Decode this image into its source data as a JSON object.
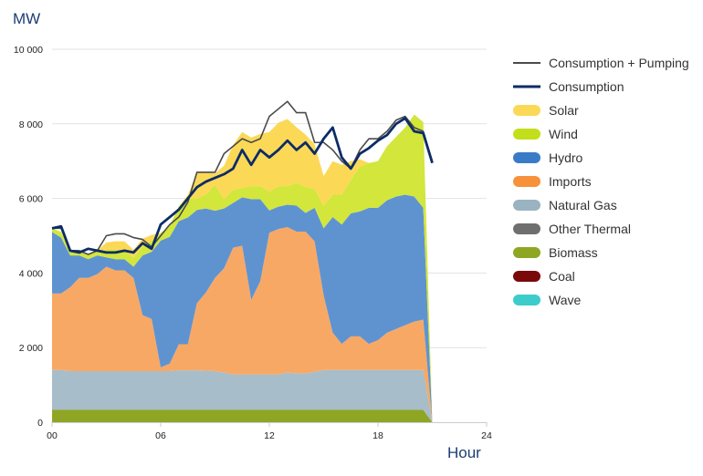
{
  "chart_data": {
    "type": "area",
    "unit": "MW",
    "xlabel": "Hour",
    "ylabel": "MW",
    "xlim": [
      0,
      24
    ],
    "ylim": [
      0,
      10000
    ],
    "xticks": [
      0,
      6,
      12,
      18,
      24
    ],
    "xtick_labels": [
      "00",
      "06",
      "12",
      "18",
      "24"
    ],
    "yticks": [
      0,
      2000,
      4000,
      6000,
      8000,
      10000
    ],
    "ytick_labels": [
      "0",
      "2 000",
      "4 000",
      "6 000",
      "8 000",
      "10 000"
    ],
    "grid": "horizontal",
    "legend_position": "right",
    "x": [
      0,
      0.5,
      1,
      1.5,
      2,
      2.5,
      3,
      3.5,
      4,
      4.5,
      5,
      5.5,
      6,
      6.5,
      7,
      7.5,
      8,
      8.5,
      9,
      9.5,
      10,
      10.5,
      11,
      11.5,
      12,
      12.5,
      13,
      13.5,
      14,
      14.5,
      15,
      15.5,
      16,
      16.5,
      17,
      17.5,
      18,
      18.5,
      19,
      19.5,
      20,
      20.5,
      21
    ],
    "stacked_series": [
      {
        "name": "Biomass",
        "color": "#8fa624",
        "values": [
          330,
          330,
          330,
          330,
          330,
          330,
          330,
          330,
          330,
          330,
          330,
          330,
          330,
          330,
          330,
          330,
          330,
          330,
          330,
          330,
          330,
          330,
          330,
          330,
          330,
          330,
          330,
          330,
          330,
          330,
          330,
          330,
          330,
          330,
          330,
          330,
          330,
          330,
          330,
          330,
          330,
          330,
          0
        ]
      },
      {
        "name": "Natural Gas",
        "color": "#a7bdc9",
        "values": [
          1070,
          1070,
          1040,
          1040,
          1040,
          1040,
          1040,
          1040,
          1040,
          1040,
          1040,
          1040,
          1040,
          1040,
          1060,
          1060,
          1060,
          1050,
          1040,
          1000,
          950,
          950,
          950,
          950,
          950,
          950,
          1000,
          980,
          980,
          1020,
          1070,
          1070,
          1070,
          1070,
          1070,
          1070,
          1070,
          1070,
          1070,
          1070,
          1070,
          1070,
          0
        ]
      },
      {
        "name": "Imports",
        "color": "#f8a865",
        "values": [
          2050,
          2050,
          2250,
          2500,
          2500,
          2600,
          2800,
          2700,
          2700,
          2500,
          1500,
          1400,
          100,
          200,
          700,
          700,
          1800,
          2100,
          2500,
          2800,
          3400,
          3450,
          2000,
          2500,
          3800,
          3900,
          3900,
          3800,
          3800,
          3500,
          2000,
          1000,
          700,
          900,
          900,
          700,
          800,
          1000,
          1100,
          1200,
          1300,
          1350,
          0
        ]
      },
      {
        "name": "Hydro",
        "color": "#5f93d0",
        "values": [
          1650,
          1500,
          850,
          600,
          500,
          500,
          250,
          300,
          300,
          300,
          1600,
          1800,
          3400,
          3400,
          3300,
          3400,
          2500,
          2250,
          1800,
          1600,
          1200,
          1300,
          2700,
          2200,
          600,
          600,
          600,
          700,
          500,
          900,
          1800,
          3100,
          3200,
          3300,
          3350,
          3650,
          3550,
          3550,
          3550,
          3500,
          3350,
          3000,
          0
        ]
      },
      {
        "name": "Wind",
        "color": "#d2e63c",
        "values": [
          100,
          150,
          150,
          130,
          130,
          130,
          200,
          250,
          250,
          230,
          250,
          300,
          200,
          300,
          400,
          500,
          300,
          380,
          700,
          250,
          350,
          250,
          350,
          350,
          500,
          550,
          500,
          600,
          700,
          500,
          600,
          600,
          800,
          900,
          1200,
          1200,
          1250,
          1450,
          1600,
          1800,
          2200,
          2300,
          0
        ]
      },
      {
        "name": "Solar",
        "color": "#fbd957",
        "values": [
          0,
          0,
          0,
          0,
          0,
          0,
          200,
          230,
          230,
          220,
          200,
          150,
          0,
          0,
          0,
          100,
          700,
          600,
          300,
          900,
          1200,
          1500,
          1300,
          1400,
          1600,
          1700,
          1800,
          1500,
          1400,
          1200,
          800,
          900,
          800,
          500,
          200,
          0,
          0,
          0,
          0,
          0,
          0,
          0,
          0
        ]
      }
    ],
    "line_series": [
      {
        "name": "Consumption + Pumping",
        "color": "#4a4a4a",
        "values": [
          5200,
          5200,
          4600,
          4600,
          4500,
          4600,
          5000,
          5050,
          5050,
          4950,
          4900,
          4700,
          5000,
          5300,
          5500,
          5900,
          6700,
          6700,
          6700,
          7200,
          7400,
          7600,
          7500,
          7600,
          8200,
          8400,
          8600,
          8300,
          8300,
          7500,
          7500,
          7300,
          7000,
          6800,
          7300,
          7600,
          7600,
          7800,
          8100,
          8200,
          7900,
          7800,
          7000
        ]
      },
      {
        "name": "Consumption",
        "color": "#0d2c66",
        "values": [
          5200,
          5250,
          4600,
          4550,
          4650,
          4600,
          4550,
          4550,
          4600,
          4550,
          4800,
          4650,
          5300,
          5500,
          5700,
          6000,
          6300,
          6450,
          6550,
          6650,
          6800,
          7300,
          6900,
          7300,
          7100,
          7300,
          7550,
          7300,
          7500,
          7200,
          7600,
          7900,
          7100,
          6800,
          7200,
          7350,
          7550,
          7700,
          8000,
          8150,
          7800,
          7750,
          6950
        ]
      }
    ],
    "legend": [
      {
        "label": "Consumption + Pumping",
        "kind": "line",
        "color": "#4a4a4a"
      },
      {
        "label": "Consumption",
        "kind": "line-bold",
        "color": "#0d2c66"
      },
      {
        "label": "Solar",
        "kind": "swatch",
        "color": "#fbd957"
      },
      {
        "label": "Wind",
        "kind": "swatch",
        "color": "#c3df1c"
      },
      {
        "label": "Hydro",
        "kind": "swatch",
        "color": "#3a7bc8"
      },
      {
        "label": "Imports",
        "kind": "swatch",
        "color": "#f7923a"
      },
      {
        "label": "Natural Gas",
        "kind": "swatch",
        "color": "#9ab3c0"
      },
      {
        "label": "Other Thermal",
        "kind": "swatch",
        "color": "#6f6f6f"
      },
      {
        "label": "Biomass",
        "kind": "swatch",
        "color": "#8fa624"
      },
      {
        "label": "Coal",
        "kind": "swatch",
        "color": "#7a0a0a"
      },
      {
        "label": "Wave",
        "kind": "swatch",
        "color": "#3ccccc"
      }
    ]
  }
}
